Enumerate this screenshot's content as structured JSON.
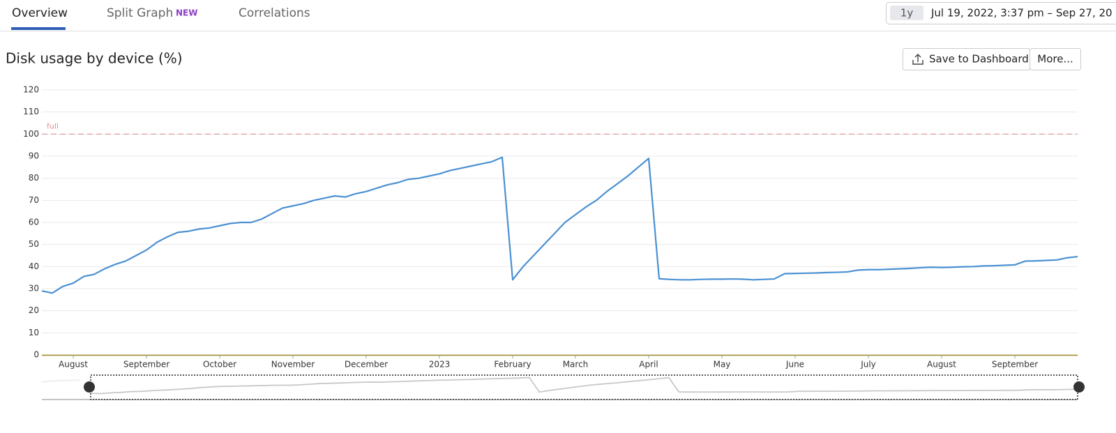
{
  "tabs": {
    "items": [
      "Overview",
      "Split Graph",
      "Correlations"
    ],
    "badge": "NEW"
  },
  "time_range": {
    "preset": "1y",
    "text": "Jul 19, 2022, 3:37 pm – Sep 27, 20"
  },
  "actions": {
    "save": "Save to Dashboard",
    "more": "More..."
  },
  "chart_data": {
    "type": "line",
    "title": "Disk usage by device (%)",
    "categories": [
      null,
      null,
      null,
      "August",
      null,
      null,
      null,
      null,
      null,
      null,
      "September",
      null,
      null,
      null,
      null,
      null,
      null,
      "October",
      null,
      null,
      null,
      null,
      null,
      null,
      "November",
      null,
      null,
      null,
      null,
      null,
      null,
      "December",
      null,
      null,
      null,
      null,
      null,
      null,
      "2023",
      null,
      null,
      null,
      null,
      null,
      null,
      "February",
      null,
      null,
      null,
      null,
      null,
      "March",
      null,
      null,
      null,
      null,
      null,
      null,
      "April",
      null,
      null,
      null,
      null,
      null,
      null,
      "May",
      null,
      null,
      null,
      null,
      null,
      null,
      "June",
      null,
      null,
      null,
      null,
      null,
      null,
      "July",
      null,
      null,
      null,
      null,
      null,
      null,
      "August",
      null,
      null,
      null,
      null,
      null,
      null,
      "September",
      null,
      null,
      null,
      null,
      null,
      null
    ],
    "series": [
      {
        "color": "#4a90d2",
        "values": [
          29,
          28,
          31,
          32.5,
          35.5,
          36.5,
          39,
          41,
          42.5,
          45,
          47.5,
          51,
          53.5,
          55.5,
          56,
          57,
          57.5,
          58.5,
          59.5,
          60,
          60,
          61.5,
          64,
          66.5,
          67.5,
          68.5,
          70,
          71,
          72,
          71.5,
          73,
          74,
          75.5,
          77,
          78,
          79.5,
          80,
          81,
          82,
          83.5,
          84.5,
          85.5,
          86.5,
          87.5,
          89.5,
          34,
          40,
          45,
          50,
          55,
          60,
          63.5,
          67,
          70,
          74,
          77.5,
          81,
          85,
          89,
          34.5,
          34.2,
          34,
          34,
          34.2,
          34.3,
          34.3,
          34.4,
          34.3,
          34,
          34.2,
          34.4,
          36.8,
          36.9,
          37,
          37.1,
          37.3,
          37.4,
          37.6,
          38.4,
          38.6,
          38.6,
          38.8,
          39,
          39.2,
          39.5,
          39.7,
          39.6,
          39.7,
          39.9,
          40,
          40.3,
          40.4,
          40.6,
          40.8,
          42.5,
          42.6,
          42.8,
          43,
          44,
          44.5
        ]
      }
    ],
    "ylim": [
      0,
      120
    ],
    "yticks": [
      0,
      10,
      20,
      30,
      40,
      50,
      60,
      70,
      80,
      90,
      100,
      110,
      120
    ],
    "grid": true,
    "reference_line": {
      "value": 100,
      "label": "full",
      "color": "#e0909a"
    }
  }
}
